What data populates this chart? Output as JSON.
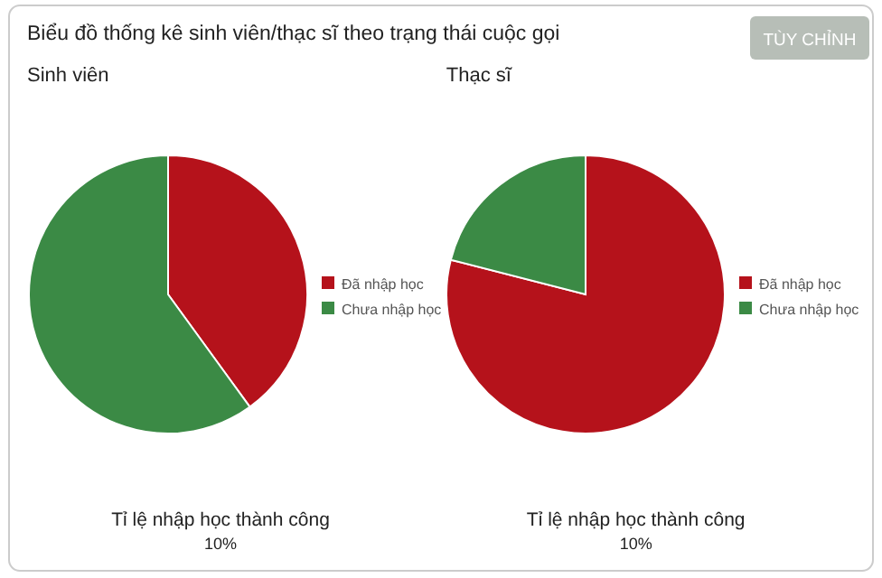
{
  "chart_data": [
    {
      "type": "pie",
      "title": "Biểu đồ thống kê sinh viên/thạc sĩ theo trạng thái cuộc gọi",
      "subtitle": "Sinh viên",
      "categories": [
        "Đã nhập học",
        "Chưa nhập học"
      ],
      "values": [
        40,
        60
      ],
      "colors": [
        "#b5121b",
        "#3b8a45"
      ],
      "legend": "right",
      "annotations": [
        "TÙY CHỈNH",
        "Tỉ lệ nhập học thành công",
        "10%"
      ]
    },
    {
      "type": "pie",
      "subtitle": "Thạc sĩ",
      "categories": [
        "Đã nhập học",
        "Chưa nhập học"
      ],
      "values": [
        79,
        21
      ],
      "colors": [
        "#b5121b",
        "#3b8a45"
      ],
      "legend": "right",
      "annotations": [
        "Tỉ lệ nhập học thành công",
        "10%"
      ]
    }
  ]
}
